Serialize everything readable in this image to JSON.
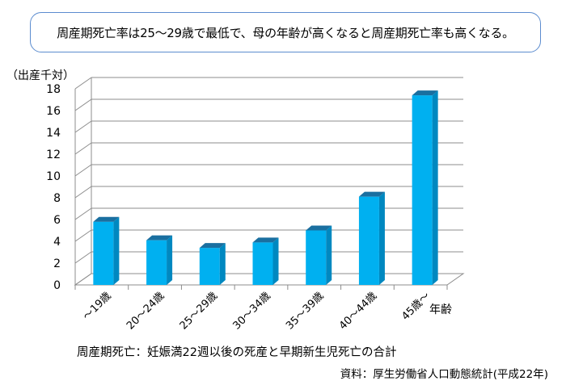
{
  "caption": "周産期死亡率は25～29歳で最低で、母の年齢が高くなると周産期死亡率も高くなる。",
  "chart_data": {
    "type": "bar",
    "ylabel": "（出産千対）",
    "xlabel": "年齢",
    "categories": [
      "～19歳",
      "20～24歳",
      "25～29歳",
      "30～34歳",
      "35～39歳",
      "40～44歳",
      "45歳～"
    ],
    "values": [
      5.8,
      4.1,
      3.4,
      3.9,
      5.0,
      8.1,
      17.4
    ],
    "ylim": [
      0,
      18
    ],
    "yticks": [
      0,
      2,
      4,
      6,
      8,
      10,
      12,
      14,
      16,
      18
    ],
    "grid": true,
    "bar_color": "#00b0f0",
    "bar_side_color": "#0088c0",
    "bar_top_color": "#1a6fa0"
  },
  "footnote": "周産期死亡：妊娠満22週以後の死産と早期新生児死亡の合計",
  "source": "資料：厚生労働省人口動態統計(平成22年)"
}
